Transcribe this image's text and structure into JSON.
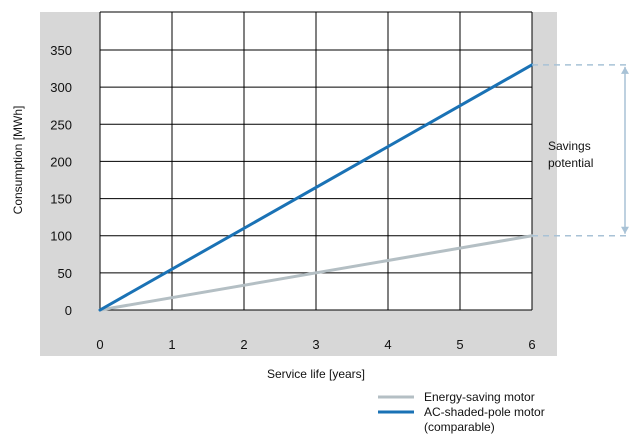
{
  "chart_data": {
    "type": "line",
    "title": "",
    "xlabel": "Service life [years]",
    "ylabel": "Consumption  [MWh]",
    "x": [
      0,
      6
    ],
    "xticks": [
      "0",
      "1",
      "2",
      "3",
      "4",
      "5",
      "6"
    ],
    "yticks": [
      "0",
      "50",
      "100",
      "150",
      "200",
      "250",
      "300",
      "350"
    ],
    "xlim": [
      0,
      6
    ],
    "ylim": [
      0,
      350
    ],
    "grid": true,
    "legend_position": "bottom-right",
    "series": [
      {
        "name": "Energy-saving motor",
        "values": [
          0,
          100
        ],
        "color": "#b4bfc4"
      },
      {
        "name": "AC-shaded-pole motor",
        "name_line2": "(comparable)",
        "values": [
          0,
          330
        ],
        "color": "#1a72b5"
      }
    ],
    "annotation": {
      "line1": "Savings",
      "line2": "potential",
      "from": 100,
      "to": 330
    }
  },
  "colors": {
    "panel": "#d7d7d7",
    "grid": "#000000",
    "guide": "#a8c2d6"
  }
}
